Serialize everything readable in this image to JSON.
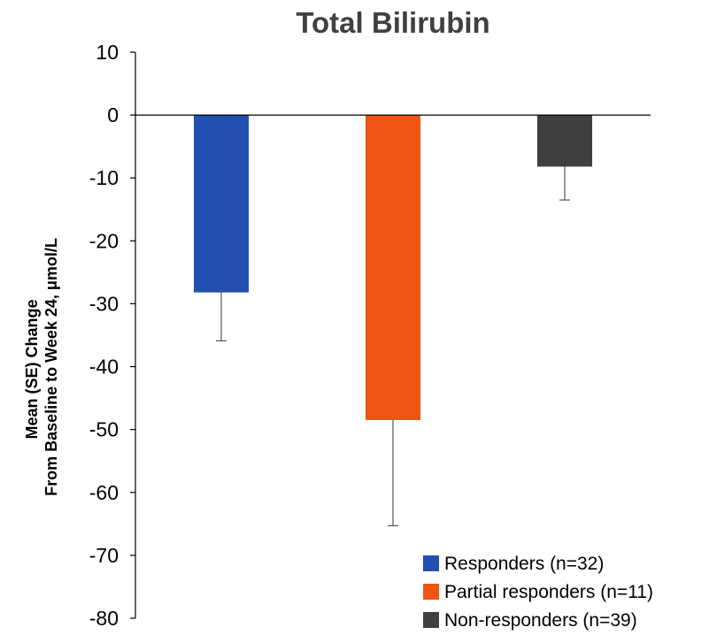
{
  "chart_data": {
    "type": "bar",
    "title": "Total Bilirubin",
    "ylabel_lines": [
      "Mean (SE) Change",
      "From Baseline to Week 24, μmol/L"
    ],
    "ylim": [
      -80,
      10
    ],
    "yticks": [
      10,
      0,
      -10,
      -20,
      -30,
      -40,
      -50,
      -60,
      -70,
      -80
    ],
    "legend_position": "bottom-right",
    "grid": false,
    "series": [
      {
        "name": "Responders (n=32)",
        "value": -28.2,
        "se": 7.7,
        "color": "#2350b0"
      },
      {
        "name": "Partial responders (n=11)",
        "value": -48.5,
        "se": 16.8,
        "color": "#f05412"
      },
      {
        "name": "Non-responders (n=39)",
        "value": -8.2,
        "se": 5.3,
        "color": "#404040"
      }
    ]
  }
}
